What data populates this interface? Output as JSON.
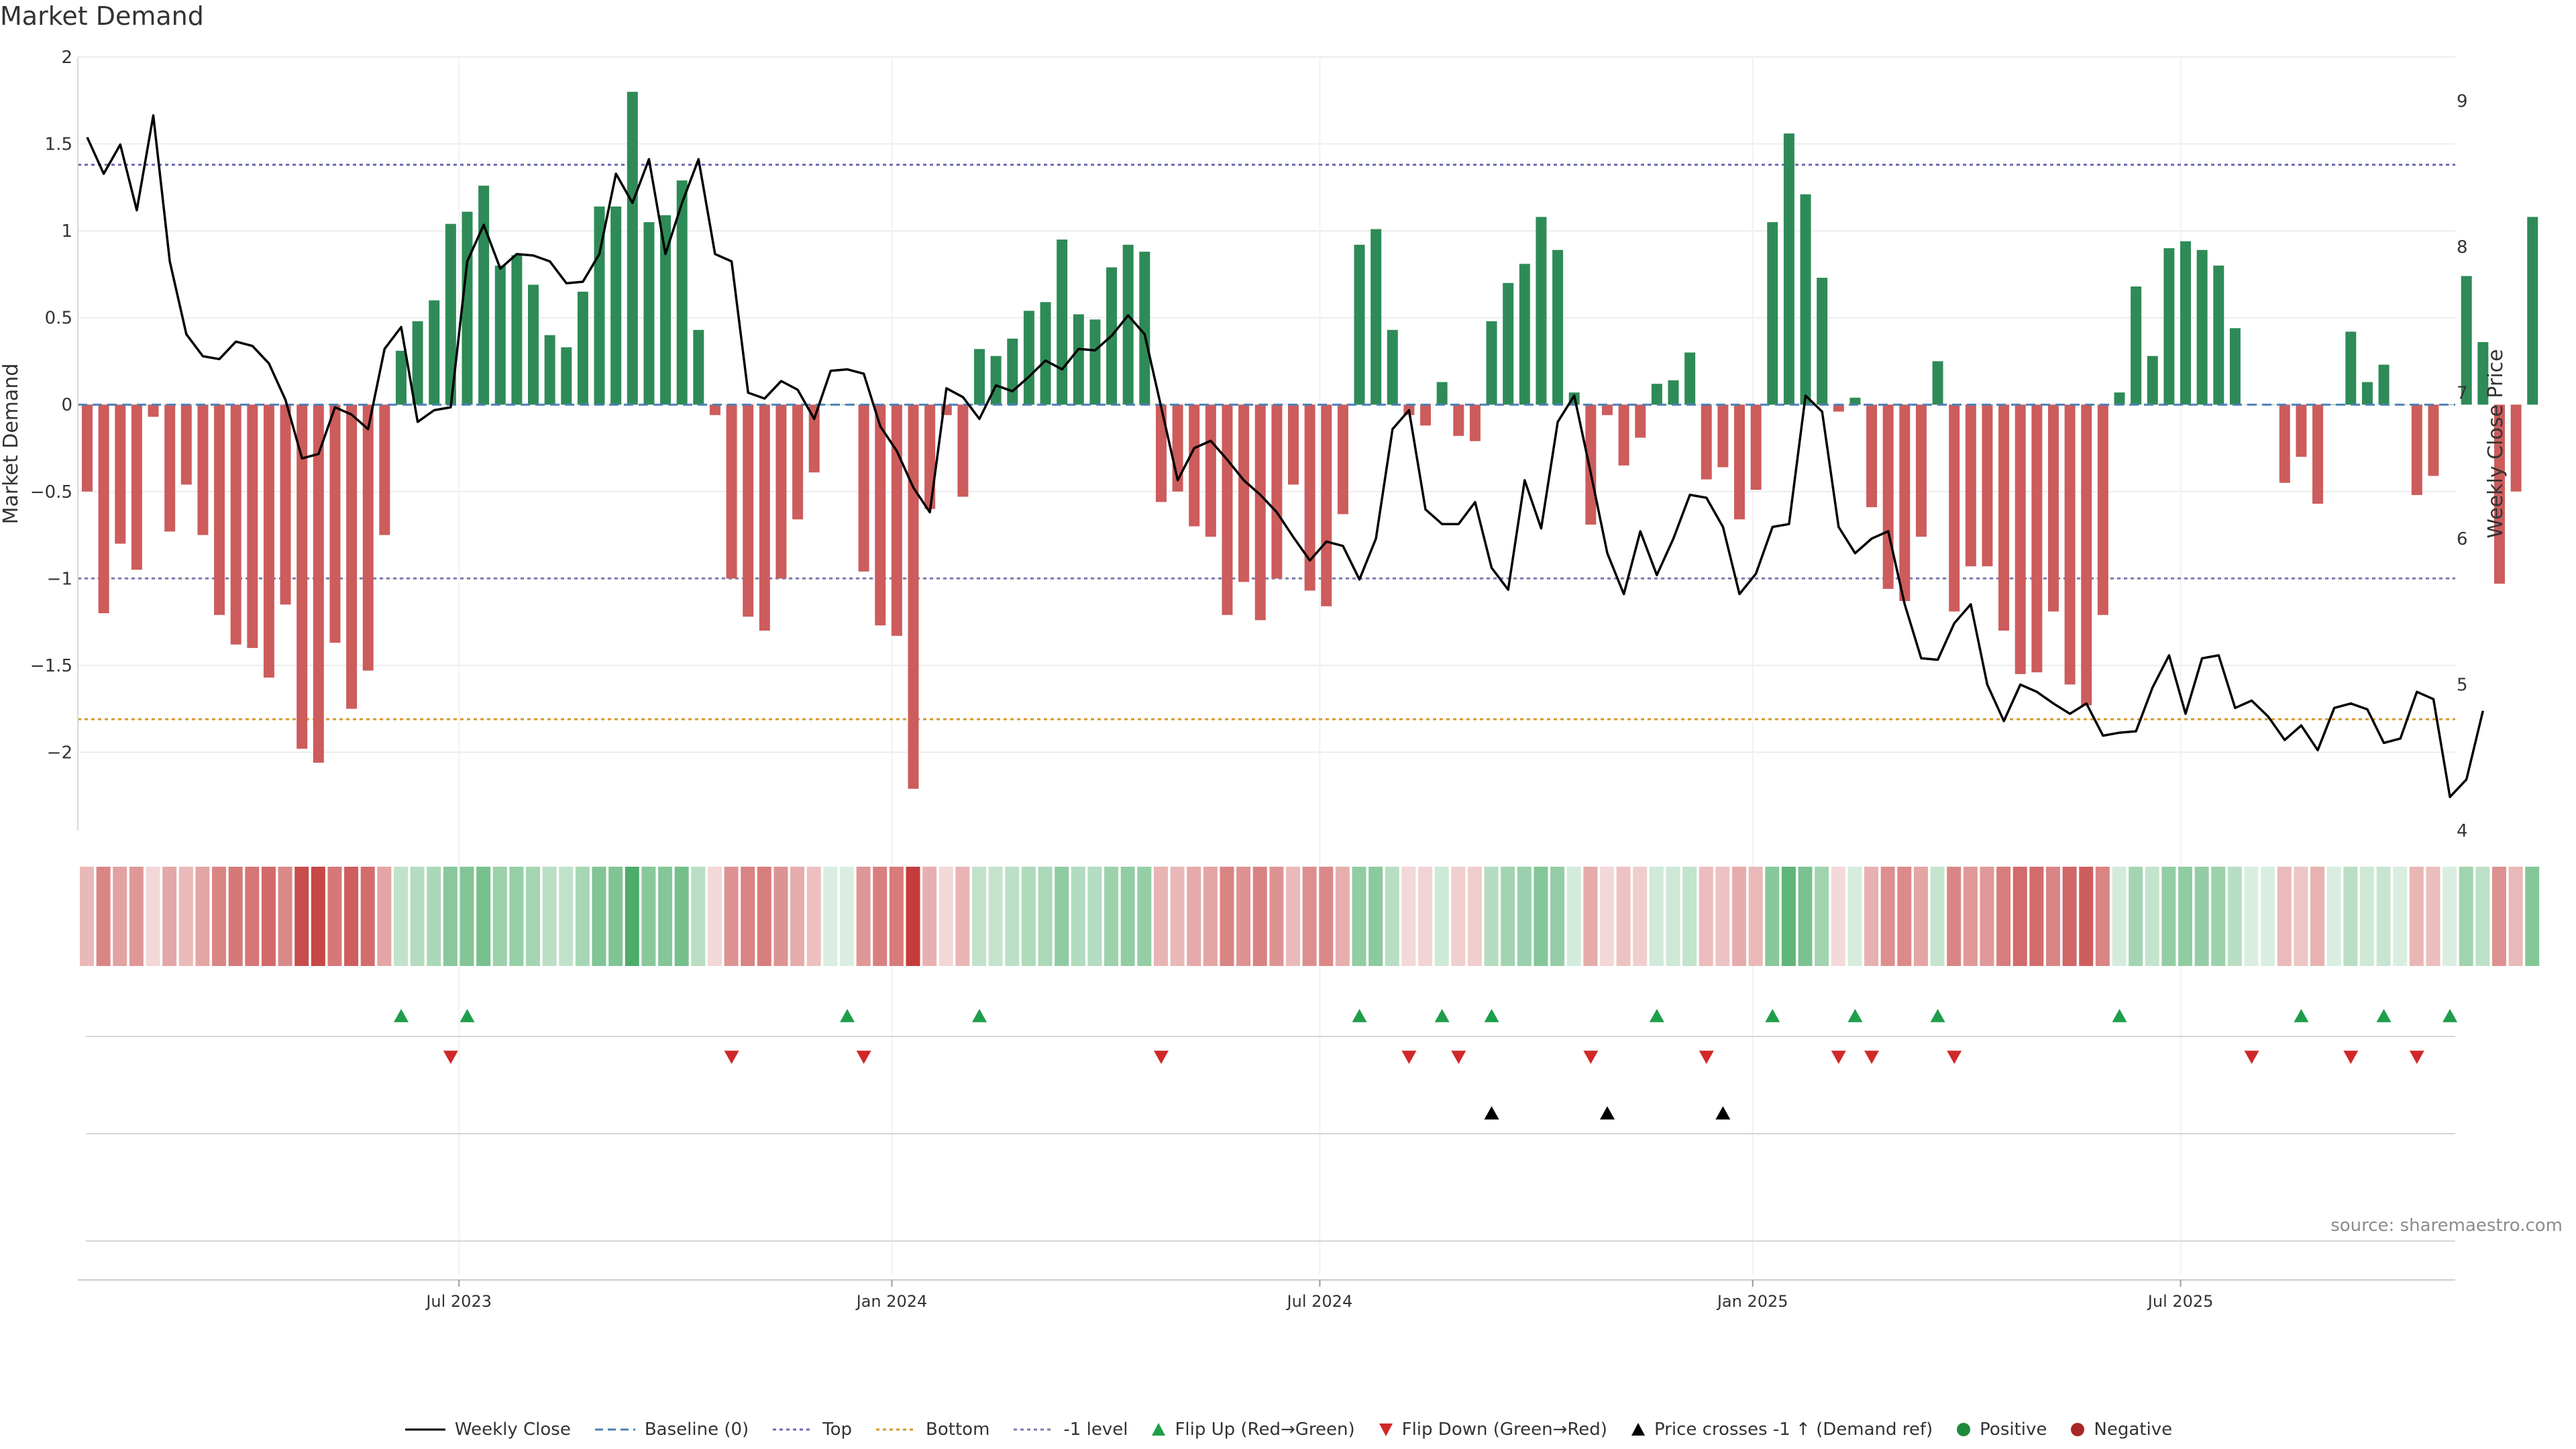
{
  "title": "Market Demand",
  "source": "source: sharemaestro.com",
  "legend": [
    {
      "label": "Weekly Close",
      "symbol": "line-solid",
      "color": "#000000"
    },
    {
      "label": "Baseline (0)",
      "symbol": "line-dashed",
      "color": "#4a7fb5"
    },
    {
      "label": "Top",
      "symbol": "line-dotted",
      "color": "#6a6ab8"
    },
    {
      "label": "Bottom",
      "symbol": "line-dotted",
      "color": "#d9962b"
    },
    {
      "label": "-1 level",
      "symbol": "line-dotted",
      "color": "#7a7ab0"
    },
    {
      "label": "Flip Up (Red→Green)",
      "symbol": "triangle-up",
      "color": "#1e9e4a"
    },
    {
      "label": "Flip Down (Green→Red)",
      "symbol": "triangle-down",
      "color": "#d02828"
    },
    {
      "label": "Price crosses -1 ↑ (Demand ref)",
      "symbol": "triangle-up",
      "color": "#000000"
    },
    {
      "label": "Positive",
      "symbol": "circle",
      "color": "#1e8a3a"
    },
    {
      "label": "Negative",
      "symbol": "circle",
      "color": "#a82828"
    }
  ],
  "chart_data": {
    "type": "bar",
    "title": "Market Demand",
    "ylabel": "Market Demand",
    "y2label": "Weekly Close Price",
    "ylim": [
      -2.45,
      2.0
    ],
    "y2lim": [
      4.0,
      9.3
    ],
    "yticks": [
      -2,
      -1.5,
      -1,
      -0.5,
      0,
      0.5,
      1,
      1.5,
      2
    ],
    "yticklabels": [
      "−2",
      "−1.5",
      "−1",
      "−0.5",
      "0",
      "0.5",
      "1",
      "1.5",
      "2"
    ],
    "y2ticks": [
      4,
      5,
      6,
      7,
      8,
      9
    ],
    "xticks": [
      {
        "index": 22.5,
        "label": "Jul 2023"
      },
      {
        "index": 48.7,
        "label": "Jan 2024"
      },
      {
        "index": 74.6,
        "label": "Jul 2024"
      },
      {
        "index": 100.8,
        "label": "Jan 2025"
      },
      {
        "index": 126.7,
        "label": "Jul 2025"
      }
    ],
    "levels": {
      "baseline": 0,
      "top": 1.38,
      "bottom": -1.81,
      "minus_one": -1.0
    },
    "colors": {
      "positive": "#2e8b57",
      "negative": "#cd5c5c",
      "price": "#000000"
    },
    "demand": [
      -0.5,
      -1.2,
      -0.8,
      -0.95,
      -0.07,
      -0.73,
      -0.46,
      -0.75,
      -1.21,
      -1.38,
      -1.4,
      -1.57,
      -1.15,
      -1.98,
      -2.06,
      -1.37,
      -1.75,
      -1.53,
      -0.75,
      0.31,
      0.48,
      0.6,
      1.04,
      1.11,
      1.26,
      0.8,
      0.86,
      0.69,
      0.4,
      0.33,
      0.65,
      1.14,
      1.14,
      1.8,
      1.05,
      1.09,
      1.29,
      0.43,
      -0.06,
      -1.0,
      -1.22,
      -1.3,
      -1.0,
      -0.66,
      -0.39,
      0.0,
      0.0,
      -0.96,
      -1.27,
      -1.33,
      -2.21,
      -0.6,
      -0.06,
      -0.53,
      0.32,
      0.28,
      0.38,
      0.54,
      0.59,
      0.95,
      0.52,
      0.49,
      0.79,
      0.92,
      0.88,
      -0.56,
      -0.5,
      -0.7,
      -0.76,
      -1.21,
      -1.02,
      -1.24,
      -1.0,
      -0.46,
      -1.07,
      -1.16,
      -0.63,
      0.92,
      1.01,
      0.43,
      -0.06,
      -0.12,
      0.13,
      -0.18,
      -0.21,
      0.48,
      0.7,
      0.81,
      1.08,
      0.89,
      0.07,
      -0.69,
      -0.06,
      -0.35,
      -0.19,
      0.12,
      0.14,
      0.3,
      -0.43,
      -0.36,
      -0.66,
      -0.49,
      1.05,
      1.56,
      1.21,
      0.73,
      -0.04,
      0.04,
      -0.59,
      -1.06,
      -1.13,
      -0.76,
      0.25,
      -1.19,
      -0.93,
      -0.93,
      -1.3,
      -1.55,
      -1.54,
      -1.19,
      -1.61,
      -1.73,
      -1.21,
      0.07,
      0.68,
      0.28,
      0.9,
      0.94,
      0.89,
      0.8,
      0.44,
      0.0,
      0.0,
      -0.45,
      -0.3,
      -0.57,
      0.0,
      0.42,
      0.13,
      0.23,
      0.0,
      -0.52,
      -0.41,
      0.0,
      0.74,
      0.36,
      -1.03,
      -0.5,
      1.08
    ],
    "close": [
      8.75,
      8.5,
      8.7,
      8.25,
      8.9,
      7.9,
      7.4,
      7.25,
      7.23,
      7.35,
      7.32,
      7.2,
      6.95,
      6.55,
      6.58,
      6.9,
      6.85,
      6.75,
      7.3,
      7.45,
      6.8,
      6.88,
      6.9,
      7.9,
      8.15,
      7.85,
      7.95,
      7.94,
      7.9,
      7.75,
      7.76,
      7.95,
      8.5,
      8.3,
      8.6,
      7.95,
      8.3,
      8.6,
      7.95,
      7.9,
      7.0,
      6.96,
      7.08,
      7.02,
      6.82,
      7.15,
      7.16,
      7.13,
      6.77,
      6.6,
      6.35,
      6.18,
      7.03,
      6.97,
      6.82,
      7.05,
      7.01,
      7.11,
      7.22,
      7.16,
      7.3,
      7.29,
      7.39,
      7.53,
      7.4,
      6.9,
      6.4,
      6.62,
      6.67,
      6.54,
      6.4,
      6.3,
      6.18,
      6.01,
      5.85,
      5.98,
      5.95,
      5.72,
      6.0,
      6.75,
      6.88,
      6.2,
      6.1,
      6.1,
      6.25,
      5.8,
      5.65,
      6.4,
      6.07,
      6.8,
      6.98,
      6.45,
      5.9,
      5.62,
      6.05,
      5.75,
      6.0,
      6.3,
      6.28,
      6.08,
      5.62,
      5.76,
      6.08,
      6.1,
      6.98,
      6.87,
      6.08,
      5.9,
      6.0,
      6.05,
      5.55,
      5.18,
      5.17,
      5.42,
      5.55,
      5.0,
      4.75,
      5.0,
      4.95,
      4.87,
      4.8,
      4.87,
      4.65,
      4.67,
      4.68,
      4.98,
      5.2,
      4.8,
      5.18,
      5.2,
      4.84,
      4.89,
      4.78,
      4.62,
      4.72,
      4.55,
      4.84,
      4.87,
      4.83,
      4.6,
      4.63,
      4.95,
      4.9,
      4.23,
      4.35,
      4.82
    ],
    "flip_up_indices": [
      19,
      23,
      46,
      54,
      77,
      82,
      85,
      95,
      102,
      107,
      112,
      123,
      134,
      139,
      143
    ],
    "flip_down_indices": [
      22,
      39,
      47,
      65,
      80,
      83,
      91,
      98,
      106,
      108,
      113,
      131,
      137,
      141
    ],
    "price_cross_indices": [
      85,
      92,
      99
    ]
  }
}
